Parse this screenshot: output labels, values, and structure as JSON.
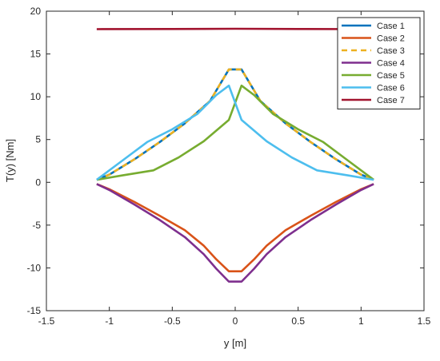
{
  "chart_data": {
    "type": "line",
    "xlabel": "y [m]",
    "ylabel": "T(y) [Nm]",
    "xlim": [
      -1.5,
      1.5
    ],
    "ylim": [
      -15,
      20
    ],
    "xticks": [
      "-1.5",
      "-1",
      "-0.5",
      "0",
      "0.5",
      "1",
      "1.5"
    ],
    "yticks": [
      "-15",
      "-10",
      "-5",
      "0",
      "5",
      "10",
      "15",
      "20"
    ],
    "grid": false,
    "box": true,
    "legend_position": "top-right",
    "series": [
      {
        "name": "Case 1",
        "color": "#0072BD",
        "dash": "solid",
        "points": [
          [
            -1.1,
            0.3
          ],
          [
            -1.0,
            0.9
          ],
          [
            -0.8,
            2.7
          ],
          [
            -0.6,
            4.7
          ],
          [
            -0.4,
            6.9
          ],
          [
            -0.2,
            9.5
          ],
          [
            -0.05,
            13.2
          ],
          [
            0.05,
            13.2
          ],
          [
            0.2,
            9.5
          ],
          [
            0.4,
            6.9
          ],
          [
            0.6,
            4.7
          ],
          [
            0.8,
            2.7
          ],
          [
            1.0,
            0.9
          ],
          [
            1.1,
            0.3
          ]
        ]
      },
      {
        "name": "Case 2",
        "color": "#D95319",
        "dash": "solid",
        "points": [
          [
            -1.1,
            -0.2
          ],
          [
            -1.0,
            -0.8
          ],
          [
            -0.8,
            -2.3
          ],
          [
            -0.6,
            -3.9
          ],
          [
            -0.4,
            -5.6
          ],
          [
            -0.25,
            -7.4
          ],
          [
            -0.15,
            -9.0
          ],
          [
            -0.05,
            -10.4
          ],
          [
            0.05,
            -10.4
          ],
          [
            0.15,
            -9.0
          ],
          [
            0.25,
            -7.4
          ],
          [
            0.4,
            -5.6
          ],
          [
            0.6,
            -3.9
          ],
          [
            0.8,
            -2.3
          ],
          [
            1.0,
            -0.8
          ],
          [
            1.1,
            -0.2
          ]
        ]
      },
      {
        "name": "Case 3",
        "color": "#EDB120",
        "dash": "dashed",
        "points": [
          [
            -1.1,
            0.3
          ],
          [
            -1.0,
            0.9
          ],
          [
            -0.8,
            2.7
          ],
          [
            -0.6,
            4.7
          ],
          [
            -0.4,
            6.9
          ],
          [
            -0.2,
            9.5
          ],
          [
            -0.05,
            13.2
          ],
          [
            0.05,
            13.2
          ],
          [
            0.2,
            9.5
          ],
          [
            0.4,
            6.9
          ],
          [
            0.6,
            4.7
          ],
          [
            0.8,
            2.7
          ],
          [
            1.0,
            0.9
          ],
          [
            1.1,
            0.3
          ]
        ]
      },
      {
        "name": "Case 4",
        "color": "#7E2F8E",
        "dash": "solid",
        "points": [
          [
            -1.1,
            -0.2
          ],
          [
            -1.0,
            -0.9
          ],
          [
            -0.8,
            -2.6
          ],
          [
            -0.6,
            -4.4
          ],
          [
            -0.4,
            -6.4
          ],
          [
            -0.25,
            -8.4
          ],
          [
            -0.15,
            -10.1
          ],
          [
            -0.05,
            -11.6
          ],
          [
            0.05,
            -11.6
          ],
          [
            0.15,
            -10.1
          ],
          [
            0.25,
            -8.4
          ],
          [
            0.4,
            -6.4
          ],
          [
            0.6,
            -4.4
          ],
          [
            0.8,
            -2.6
          ],
          [
            1.0,
            -0.9
          ],
          [
            1.1,
            -0.2
          ]
        ]
      },
      {
        "name": "Case 5",
        "color": "#77AC30",
        "dash": "solid",
        "points": [
          [
            -1.1,
            0.3
          ],
          [
            -0.9,
            0.8
          ],
          [
            -0.65,
            1.4
          ],
          [
            -0.45,
            2.9
          ],
          [
            -0.25,
            4.8
          ],
          [
            -0.05,
            7.3
          ],
          [
            0.05,
            11.3
          ],
          [
            0.15,
            10.2
          ],
          [
            0.3,
            8.0
          ],
          [
            0.5,
            6.2
          ],
          [
            0.7,
            4.7
          ],
          [
            0.9,
            2.5
          ],
          [
            1.1,
            0.3
          ]
        ]
      },
      {
        "name": "Case 6",
        "color": "#4DBEEE",
        "dash": "solid",
        "points": [
          [
            -1.1,
            0.3
          ],
          [
            -0.9,
            2.5
          ],
          [
            -0.7,
            4.7
          ],
          [
            -0.5,
            6.2
          ],
          [
            -0.3,
            8.0
          ],
          [
            -0.15,
            10.2
          ],
          [
            -0.05,
            11.3
          ],
          [
            0.05,
            7.3
          ],
          [
            0.25,
            4.8
          ],
          [
            0.45,
            2.9
          ],
          [
            0.65,
            1.4
          ],
          [
            0.9,
            0.8
          ],
          [
            1.1,
            0.3
          ]
        ]
      },
      {
        "name": "Case 7",
        "color": "#A2142F",
        "dash": "solid",
        "points": [
          [
            -1.1,
            17.9
          ],
          [
            -0.5,
            17.92
          ],
          [
            0.0,
            17.95
          ],
          [
            0.5,
            17.92
          ],
          [
            1.1,
            17.9
          ]
        ]
      }
    ]
  }
}
